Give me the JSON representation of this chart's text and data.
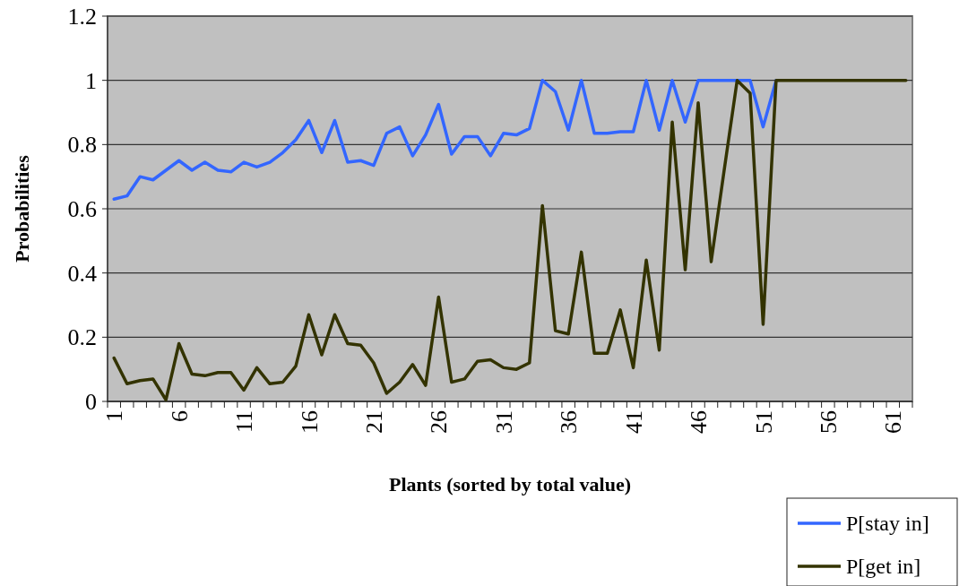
{
  "chart_data": {
    "type": "line",
    "xlabel": "Plants (sorted by total value)",
    "ylabel": "Probabilities",
    "categories": [
      "1",
      null,
      null,
      null,
      null,
      "6",
      null,
      null,
      null,
      null,
      "11",
      null,
      null,
      null,
      null,
      "16",
      null,
      null,
      null,
      null,
      "21",
      null,
      null,
      null,
      null,
      "26",
      null,
      null,
      null,
      null,
      "31",
      null,
      null,
      null,
      null,
      "36",
      null,
      null,
      null,
      null,
      "41",
      null,
      null,
      null,
      null,
      "46",
      null,
      null,
      null,
      null,
      "51",
      null,
      null,
      null,
      null,
      "56",
      null,
      null,
      null,
      null,
      "61",
      null
    ],
    "series": [
      {
        "name": "P[stay in]",
        "color": "#3366ff",
        "values": [
          0.63,
          0.64,
          0.7,
          0.69,
          0.72,
          0.75,
          0.72,
          0.745,
          0.72,
          0.715,
          0.745,
          0.73,
          0.745,
          0.775,
          0.815,
          0.875,
          0.775,
          0.875,
          0.745,
          0.75,
          0.735,
          0.835,
          0.855,
          0.765,
          0.83,
          0.925,
          0.77,
          0.825,
          0.825,
          0.765,
          0.835,
          0.83,
          0.85,
          1.0,
          0.965,
          0.845,
          1.0,
          0.835,
          0.835,
          0.84,
          0.84,
          1.0,
          0.845,
          1.0,
          0.87,
          1.0,
          1.0,
          1.0,
          1.0,
          1.0,
          0.855,
          1.0,
          null,
          null,
          null,
          null,
          null,
          null,
          null,
          null,
          null,
          null
        ]
      },
      {
        "name": "P[get in]",
        "color": "#333300",
        "values": [
          0.135,
          0.055,
          0.065,
          0.07,
          0.005,
          0.18,
          0.085,
          0.08,
          0.09,
          0.09,
          0.035,
          0.105,
          0.055,
          0.06,
          0.11,
          0.27,
          0.145,
          0.27,
          0.18,
          0.175,
          0.12,
          0.025,
          0.06,
          0.115,
          0.05,
          0.325,
          0.06,
          0.07,
          0.125,
          0.13,
          0.105,
          0.1,
          0.12,
          0.61,
          0.22,
          0.21,
          0.465,
          0.15,
          0.15,
          0.285,
          0.105,
          0.44,
          0.16,
          0.87,
          0.41,
          0.93,
          0.435,
          0.72,
          1.0,
          0.96,
          0.24,
          1.0,
          1.0,
          1.0,
          1.0,
          1.0,
          1.0,
          1.0,
          1.0,
          1.0,
          1.0,
          1.0
        ]
      }
    ],
    "ylim": [
      0,
      1.2
    ],
    "yticks": [
      0,
      0.2,
      0.4,
      0.6,
      0.8,
      1,
      1.2
    ],
    "grid": "y",
    "legend": "bottom right"
  }
}
